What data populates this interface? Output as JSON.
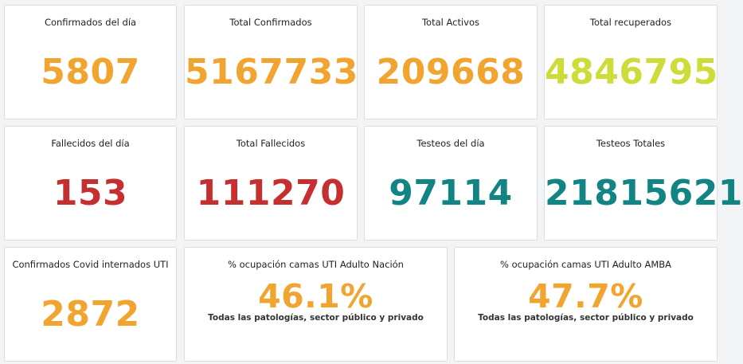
{
  "cards": {
    "confirmados_dia": {
      "title": "Confirmados del día",
      "value": "5807"
    },
    "total_confirmados": {
      "title": "Total Confirmados",
      "value": "5167733"
    },
    "total_activos": {
      "title": "Total Activos",
      "value": "209668"
    },
    "total_recuperados": {
      "title": "Total recuperados",
      "value": "4846795"
    },
    "fallecidos_dia": {
      "title": "Fallecidos del día",
      "value": "153"
    },
    "total_fallecidos": {
      "title": "Total Fallecidos",
      "value": "111270"
    },
    "testeos_dia": {
      "title": "Testeos del día",
      "value": "97114"
    },
    "testeos_totales": {
      "title": "Testeos Totales",
      "value": "21815621"
    },
    "internados_uti": {
      "title": "Confirmados Covid internados UTI",
      "value": "2872"
    },
    "ocupacion_nacion": {
      "title": "% ocupación camas UTI Adulto Nación",
      "value": "46.1%",
      "subtitle": "Todas las patologías, sector público y privado"
    },
    "ocupacion_amba": {
      "title": "% ocupación camas UTI Adulto AMBA",
      "value": "47.7%",
      "subtitle": "Todas las patologías, sector público y privado"
    }
  },
  "colors": {
    "orange": "#f1a430",
    "lime": "#cddc39",
    "red": "#c62f30",
    "teal": "#138484"
  }
}
